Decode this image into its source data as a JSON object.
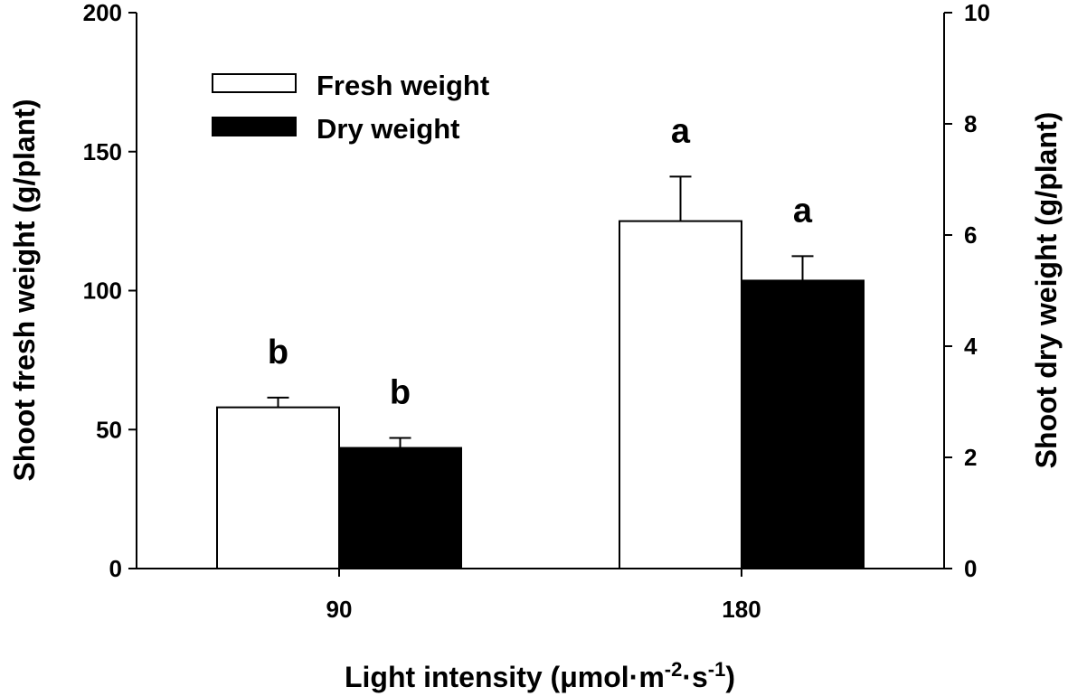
{
  "chart_data": {
    "type": "bar",
    "categories": [
      "90",
      "180"
    ],
    "xlabel": {
      "main": "Light intensity (",
      "unit_mu": "μ",
      "unit_mol": "mol",
      "dot1": "·",
      "unit_m": "m",
      "exp_m": "-2",
      "dot2": "·",
      "unit_s": "s",
      "exp_s": "-1",
      "close": ")"
    },
    "ylabel_left": "Shoot fresh weight (g/plant)",
    "ylabel_right": "Shoot dry weight (g/plant)",
    "ylim_left": [
      0,
      200
    ],
    "yticks_left": [
      0,
      50,
      100,
      150,
      200
    ],
    "ylim_right": [
      0,
      10
    ],
    "yticks_right": [
      0,
      2,
      4,
      6,
      8,
      10
    ],
    "legend_position": "top-left",
    "grid": false,
    "series": [
      {
        "name": "Fresh weight",
        "axis": "left",
        "fill": "#ffffff",
        "values": [
          58,
          125
        ],
        "errors": [
          3.5,
          16
        ],
        "letters": [
          "b",
          "a"
        ]
      },
      {
        "name": "Dry weight",
        "axis": "right",
        "fill": "#000000",
        "values": [
          2.17,
          5.18
        ],
        "errors": [
          0.18,
          0.44
        ],
        "letters": [
          "b",
          "a"
        ]
      }
    ]
  }
}
